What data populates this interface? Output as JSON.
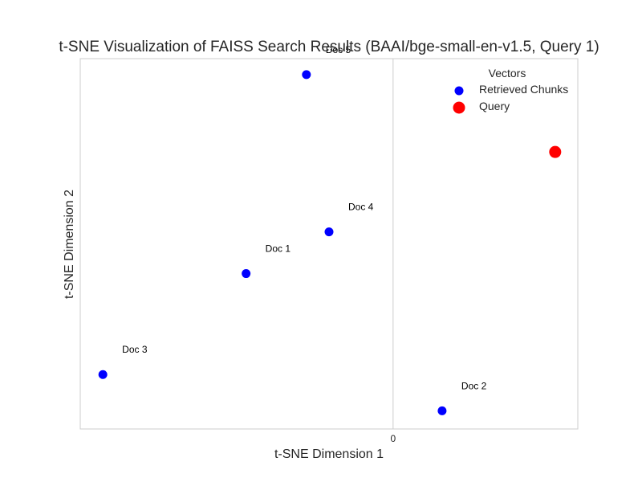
{
  "chart_data": {
    "type": "scatter",
    "title": "t-SNE Visualization of FAISS Search Results (BAAI/bge-small-en-v1.5, Query 1)",
    "xlabel": "t-SNE Dimension 1",
    "ylabel": "t-SNE Dimension 2",
    "xlim": [
      -83,
      49
    ],
    "ylim": [
      -40,
      62
    ],
    "x_ticks": [
      0
    ],
    "y_ticks": [],
    "grid": true,
    "legend": {
      "title": "Vectors",
      "placement": "top-right",
      "entries": [
        {
          "label": "Retrieved Chunks",
          "color": "#0000ff",
          "marker": "small-circle"
        },
        {
          "label": "Query",
          "color": "#ff0000",
          "marker": "large-circle"
        }
      ]
    },
    "series": [
      {
        "name": "Retrieved Chunks",
        "color": "#0000ff",
        "points": [
          {
            "label": "Doc 1",
            "x": -39,
            "y": 2.8
          },
          {
            "label": "Doc 2",
            "x": 13,
            "y": -35
          },
          {
            "label": "Doc 3",
            "x": -77,
            "y": -25
          },
          {
            "label": "Doc 4",
            "x": -17,
            "y": 14.3
          },
          {
            "label": "Doc 5",
            "x": -23,
            "y": 57.6
          }
        ]
      },
      {
        "name": "Query",
        "color": "#ff0000",
        "points": [
          {
            "x": 43,
            "y": 36.3
          }
        ]
      }
    ]
  }
}
